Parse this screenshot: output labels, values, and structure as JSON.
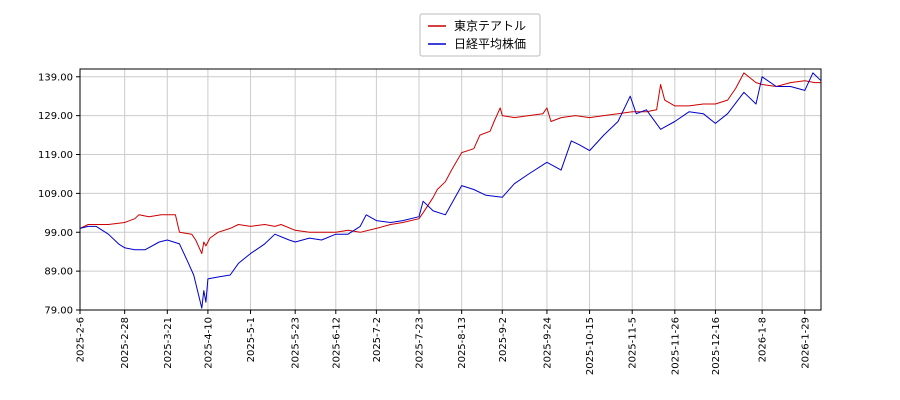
{
  "chart_data": {
    "type": "line",
    "title": "",
    "xlabel": "",
    "ylabel": "",
    "ylim": [
      79.0,
      141.0
    ],
    "yticks": [
      "79.00",
      "89.00",
      "99.00",
      "109.00",
      "119.00",
      "129.00",
      "139.00"
    ],
    "xticks": [
      "2025-2-6",
      "2025-2-28",
      "2025-3-21",
      "2025-4-10",
      "2025-5-1",
      "2025-5-23",
      "2025-6-12",
      "2025-7-2",
      "2025-7-23",
      "2025-8-13",
      "2025-9-2",
      "2025-9-24",
      "2025-10-15",
      "2025-11-5",
      "2025-11-26",
      "2025-12-16",
      "2026-1-8",
      "2026-1-29"
    ],
    "grid": true,
    "legend_position": "top-center",
    "series": [
      {
        "name": "東京テアトル",
        "color": "#cc0000",
        "points": [
          [
            "2025-2-6",
            100.0
          ],
          [
            "2025-2-10",
            101.0
          ],
          [
            "2025-2-14",
            101.0
          ],
          [
            "2025-2-20",
            101.0
          ],
          [
            "2025-2-28",
            101.5
          ],
          [
            "2025-3-5",
            102.5
          ],
          [
            "2025-3-7",
            103.5
          ],
          [
            "2025-3-12",
            103.0
          ],
          [
            "2025-3-18",
            103.5
          ],
          [
            "2025-3-25",
            103.5
          ],
          [
            "2025-3-27",
            99.0
          ],
          [
            "2025-4-2",
            98.5
          ],
          [
            "2025-4-4",
            97.0
          ],
          [
            "2025-4-7",
            93.5
          ],
          [
            "2025-4-8",
            96.5
          ],
          [
            "2025-4-9",
            95.5
          ],
          [
            "2025-4-11",
            97.5
          ],
          [
            "2025-4-15",
            99.0
          ],
          [
            "2025-4-21",
            100.0
          ],
          [
            "2025-4-25",
            101.0
          ],
          [
            "2025-5-1",
            100.5
          ],
          [
            "2025-5-8",
            101.0
          ],
          [
            "2025-5-13",
            100.5
          ],
          [
            "2025-5-16",
            101.0
          ],
          [
            "2025-5-23",
            99.5
          ],
          [
            "2025-5-30",
            99.0
          ],
          [
            "2025-6-5",
            99.0
          ],
          [
            "2025-6-12",
            99.0
          ],
          [
            "2025-6-18",
            99.5
          ],
          [
            "2025-6-24",
            99.0
          ],
          [
            "2025-7-2",
            100.0
          ],
          [
            "2025-7-9",
            101.0
          ],
          [
            "2025-7-15",
            101.5
          ],
          [
            "2025-7-23",
            102.5
          ],
          [
            "2025-7-25",
            104.0
          ],
          [
            "2025-7-30",
            108.0
          ],
          [
            "2025-8-1",
            110.0
          ],
          [
            "2025-8-5",
            112.0
          ],
          [
            "2025-8-8",
            115.0
          ],
          [
            "2025-8-13",
            119.5
          ],
          [
            "2025-8-19",
            120.5
          ],
          [
            "2025-8-22",
            124.0
          ],
          [
            "2025-8-27",
            125.0
          ],
          [
            "2025-8-29",
            127.5
          ],
          [
            "2025-9-1",
            131.0
          ],
          [
            "2025-9-2",
            129.0
          ],
          [
            "2025-9-8",
            128.5
          ],
          [
            "2025-9-15",
            129.0
          ],
          [
            "2025-9-22",
            129.5
          ],
          [
            "2025-9-24",
            131.0
          ],
          [
            "2025-9-26",
            127.5
          ],
          [
            "2025-10-1",
            128.5
          ],
          [
            "2025-10-8",
            129.0
          ],
          [
            "2025-10-15",
            128.5
          ],
          [
            "2025-10-22",
            129.0
          ],
          [
            "2025-10-29",
            129.5
          ],
          [
            "2025-11-5",
            130.0
          ],
          [
            "2025-11-12",
            130.0
          ],
          [
            "2025-11-17",
            130.5
          ],
          [
            "2025-11-19",
            137.0
          ],
          [
            "2025-11-21",
            133.0
          ],
          [
            "2025-11-26",
            131.5
          ],
          [
            "2025-12-3",
            131.5
          ],
          [
            "2025-12-10",
            132.0
          ],
          [
            "2025-12-16",
            132.0
          ],
          [
            "2025-12-22",
            133.0
          ],
          [
            "2025-12-26",
            136.0
          ],
          [
            "2025-12-30",
            140.0
          ],
          [
            "2026-1-5",
            137.5
          ],
          [
            "2026-1-8",
            137.0
          ],
          [
            "2026-1-15",
            136.5
          ],
          [
            "2026-1-22",
            137.5
          ],
          [
            "2026-1-29",
            138.0
          ],
          [
            "2026-2-3",
            137.5
          ],
          [
            "2026-2-6",
            137.5
          ]
        ]
      },
      {
        "name": "日経平均株価",
        "color": "#0000cc",
        "points": [
          [
            "2025-2-6",
            100.0
          ],
          [
            "2025-2-10",
            100.5
          ],
          [
            "2025-2-14",
            100.5
          ],
          [
            "2025-2-20",
            98.5
          ],
          [
            "2025-2-25",
            96.0
          ],
          [
            "2025-2-28",
            95.0
          ],
          [
            "2025-3-5",
            94.5
          ],
          [
            "2025-3-10",
            94.5
          ],
          [
            "2025-3-17",
            96.5
          ],
          [
            "2025-3-21",
            97.0
          ],
          [
            "2025-3-27",
            96.0
          ],
          [
            "2025-3-31",
            91.5
          ],
          [
            "2025-4-3",
            88.0
          ],
          [
            "2025-4-7",
            79.5
          ],
          [
            "2025-4-8",
            84.0
          ],
          [
            "2025-4-9",
            81.0
          ],
          [
            "2025-4-10",
            87.0
          ],
          [
            "2025-4-15",
            87.5
          ],
          [
            "2025-4-21",
            88.0
          ],
          [
            "2025-4-25",
            91.0
          ],
          [
            "2025-5-1",
            93.5
          ],
          [
            "2025-5-8",
            96.0
          ],
          [
            "2025-5-13",
            98.5
          ],
          [
            "2025-5-20",
            97.0
          ],
          [
            "2025-5-23",
            96.5
          ],
          [
            "2025-5-30",
            97.5
          ],
          [
            "2025-6-5",
            97.0
          ],
          [
            "2025-6-12",
            98.5
          ],
          [
            "2025-6-18",
            98.5
          ],
          [
            "2025-6-24",
            100.5
          ],
          [
            "2025-6-27",
            103.5
          ],
          [
            "2025-7-2",
            102.0
          ],
          [
            "2025-7-9",
            101.5
          ],
          [
            "2025-7-15",
            102.0
          ],
          [
            "2025-7-23",
            103.0
          ],
          [
            "2025-7-25",
            107.0
          ],
          [
            "2025-7-30",
            104.5
          ],
          [
            "2025-8-5",
            103.5
          ],
          [
            "2025-8-13",
            111.0
          ],
          [
            "2025-8-19",
            110.0
          ],
          [
            "2025-8-25",
            108.5
          ],
          [
            "2025-9-2",
            108.0
          ],
          [
            "2025-9-8",
            111.5
          ],
          [
            "2025-9-15",
            114.0
          ],
          [
            "2025-9-24",
            117.0
          ],
          [
            "2025-10-1",
            115.0
          ],
          [
            "2025-10-6",
            122.5
          ],
          [
            "2025-10-10",
            121.5
          ],
          [
            "2025-10-15",
            120.0
          ],
          [
            "2025-10-22",
            124.0
          ],
          [
            "2025-10-29",
            127.5
          ],
          [
            "2025-11-4",
            134.0
          ],
          [
            "2025-11-7",
            129.5
          ],
          [
            "2025-11-12",
            130.5
          ],
          [
            "2025-11-19",
            125.5
          ],
          [
            "2025-11-26",
            127.5
          ],
          [
            "2025-12-3",
            130.0
          ],
          [
            "2025-12-10",
            129.5
          ],
          [
            "2025-12-16",
            127.0
          ],
          [
            "2025-12-22",
            129.5
          ],
          [
            "2025-12-30",
            135.0
          ],
          [
            "2026-1-5",
            132.0
          ],
          [
            "2026-1-8",
            139.0
          ],
          [
            "2026-1-15",
            136.5
          ],
          [
            "2026-1-22",
            136.5
          ],
          [
            "2026-1-29",
            135.5
          ],
          [
            "2026-2-2",
            140.0
          ],
          [
            "2026-2-6",
            138.0
          ]
        ]
      }
    ]
  }
}
